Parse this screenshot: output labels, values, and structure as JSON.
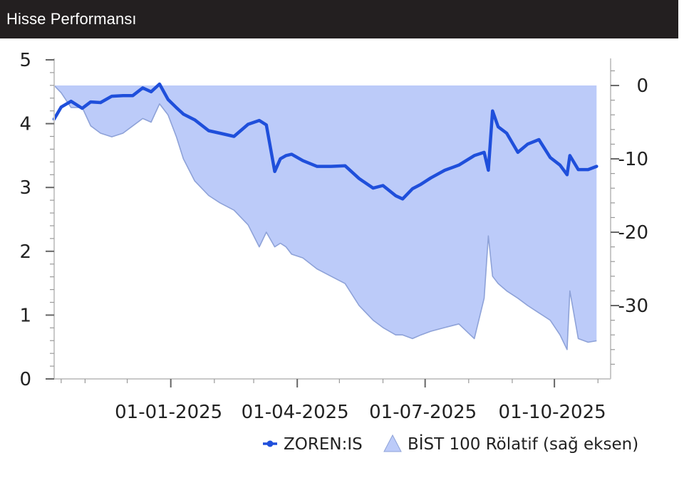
{
  "header": {
    "title": "Hisse Performansı"
  },
  "colors": {
    "header_bg": "#231f20",
    "line": "#1f4fdb",
    "area": "#bccbf9",
    "area_edge": "#8ea2d8",
    "frame": "#c9c9c9"
  },
  "chart_data": {
    "type": "line",
    "title": "",
    "xlabel": "",
    "ylabel": "",
    "x_tick_labels": [
      "01-01-2025",
      "01-04-2025",
      "01-07-2025",
      "01-10-2025"
    ],
    "ylim_left": [
      0,
      5
    ],
    "ylim_right": [
      -40,
      3.5
    ],
    "y_ticks_left": [
      "0",
      "1",
      "2",
      "3",
      "4",
      "5"
    ],
    "y_ticks_right": [
      "0",
      "-10",
      "-20",
      "-30"
    ],
    "x_range": [
      "2024-10-10",
      "2025-11-10"
    ],
    "grid": false,
    "legend_position": "bottom-right",
    "series": [
      {
        "name": "ZOREN:IS",
        "type": "line",
        "axis": "left",
        "x": [
          "2024-10-10",
          "2024-10-15",
          "2024-10-22",
          "2024-10-30",
          "2024-11-05",
          "2024-11-12",
          "2024-11-20",
          "2024-11-28",
          "2024-12-05",
          "2024-12-12",
          "2024-12-18",
          "2024-12-24",
          "2024-12-30",
          "2025-01-05",
          "2025-01-10",
          "2025-01-18",
          "2025-01-28",
          "2025-02-05",
          "2025-02-15",
          "2025-02-25",
          "2025-03-05",
          "2025-03-10",
          "2025-03-16",
          "2025-03-20",
          "2025-03-24",
          "2025-03-28",
          "2025-04-05",
          "2025-04-15",
          "2025-04-25",
          "2025-05-05",
          "2025-05-15",
          "2025-05-25",
          "2025-06-01",
          "2025-06-10",
          "2025-06-15",
          "2025-06-22",
          "2025-06-28",
          "2025-07-05",
          "2025-07-15",
          "2025-07-25",
          "2025-08-05",
          "2025-08-12",
          "2025-08-15",
          "2025-08-18",
          "2025-08-22",
          "2025-08-28",
          "2025-09-05",
          "2025-09-12",
          "2025-09-20",
          "2025-09-28",
          "2025-10-05",
          "2025-10-10",
          "2025-10-12",
          "2025-10-18",
          "2025-10-25",
          "2025-10-31"
        ],
        "values": [
          4.07,
          4.26,
          4.35,
          4.24,
          4.34,
          4.33,
          4.43,
          4.44,
          4.44,
          4.56,
          4.5,
          4.62,
          4.38,
          4.25,
          4.15,
          4.06,
          3.89,
          3.85,
          3.8,
          3.99,
          4.05,
          3.98,
          3.25,
          3.45,
          3.5,
          3.52,
          3.42,
          3.33,
          3.33,
          3.34,
          3.14,
          2.99,
          3.03,
          2.87,
          2.82,
          2.98,
          3.05,
          3.15,
          3.27,
          3.35,
          3.5,
          3.55,
          3.27,
          4.2,
          3.95,
          3.85,
          3.55,
          3.68,
          3.75,
          3.47,
          3.35,
          3.2,
          3.5,
          3.28,
          3.28,
          3.33
        ]
      },
      {
        "name": "BİST 100 Rölatif (sağ eksen)",
        "type": "area",
        "axis": "right",
        "baseline": 0,
        "x": [
          "2024-10-10",
          "2024-10-15",
          "2024-10-22",
          "2024-10-30",
          "2024-11-05",
          "2024-11-12",
          "2024-11-20",
          "2024-11-28",
          "2024-12-05",
          "2024-12-12",
          "2024-12-18",
          "2024-12-24",
          "2024-12-30",
          "2025-01-05",
          "2025-01-10",
          "2025-01-18",
          "2025-01-28",
          "2025-02-05",
          "2025-02-15",
          "2025-02-25",
          "2025-03-05",
          "2025-03-10",
          "2025-03-16",
          "2025-03-20",
          "2025-03-24",
          "2025-03-28",
          "2025-04-05",
          "2025-04-15",
          "2025-04-25",
          "2025-05-05",
          "2025-05-15",
          "2025-05-25",
          "2025-06-01",
          "2025-06-10",
          "2025-06-15",
          "2025-06-22",
          "2025-06-28",
          "2025-07-05",
          "2025-07-15",
          "2025-07-25",
          "2025-08-05",
          "2025-08-12",
          "2025-08-15",
          "2025-08-18",
          "2025-08-22",
          "2025-08-28",
          "2025-09-05",
          "2025-09-12",
          "2025-09-20",
          "2025-09-28",
          "2025-10-05",
          "2025-10-10",
          "2025-10-12",
          "2025-10-18",
          "2025-10-25",
          "2025-10-31"
        ],
        "values": [
          0,
          -1,
          -3,
          -3,
          -5.5,
          -6.5,
          -7,
          -6.5,
          -5.5,
          -4.5,
          -5,
          -2.5,
          -4,
          -7,
          -10,
          -13,
          -15,
          -16,
          -17,
          -19,
          -22,
          -20,
          -22,
          -21.5,
          -22,
          -23,
          -23.5,
          -25,
          -26,
          -27,
          -30,
          -32,
          -33,
          -34,
          -34,
          -34.5,
          -34,
          -33.5,
          -33,
          -32.5,
          -34.5,
          -29,
          -20.5,
          -26,
          -27,
          -28,
          -29,
          -30,
          -31,
          -32,
          -34,
          -36,
          -28,
          -34.5,
          -35,
          -34.8
        ]
      }
    ]
  }
}
